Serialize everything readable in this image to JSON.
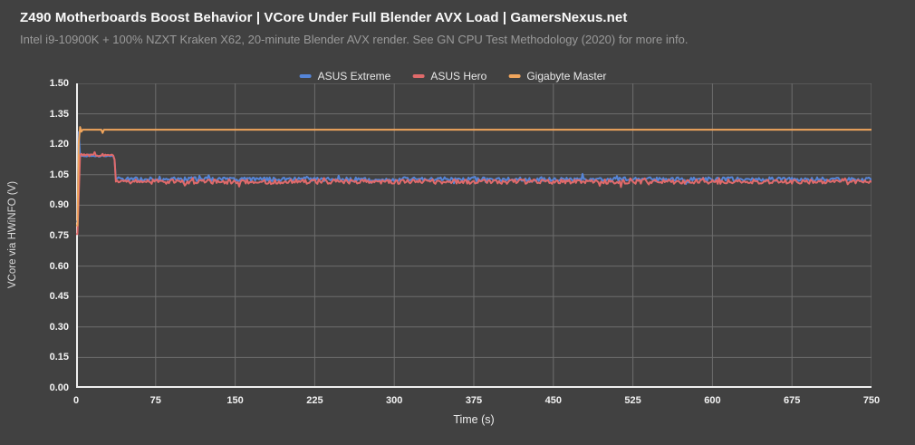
{
  "header": {
    "title": "Z490 Motherboards Boost Behavior | VCore Under Full Blender AVX Load | GamersNexus.net",
    "subtitle": "Intel i9-10900K + 100% NZXT Kraken X62, 20-minute Blender AVX render. See GN CPU Test Methodology (2020) for more info."
  },
  "colors": {
    "background": "#414141",
    "gridline": "#6d6d6d",
    "axis_line": "#efefef",
    "tick_text": "#f2f2f2",
    "series_blue": "#5585d8",
    "series_red": "#e06a6a",
    "series_orange": "#f0a55c"
  },
  "chart_data": {
    "type": "line",
    "title": "Z490 Motherboards Boost Behavior | VCore Under Full Blender AVX Load | GamersNexus.net",
    "subtitle": "Intel i9-10900K + 100% NZXT Kraken X62, 20-minute Blender AVX render. See GN CPU Test Methodology (2020) for more info.",
    "xlabel": "Time (s)",
    "ylabel": "VCore via HWiNFO (V)",
    "xlim": [
      0,
      750
    ],
    "ylim": [
      0.0,
      1.5
    ],
    "xticks": [
      0,
      75,
      150,
      225,
      300,
      375,
      450,
      525,
      600,
      675,
      750
    ],
    "yticks": [
      0.0,
      0.15,
      0.3,
      0.45,
      0.6,
      0.75,
      0.9,
      1.05,
      1.2,
      1.35,
      1.5
    ],
    "ytick_format_decimals": 2,
    "grid": true,
    "legend_position": "top-center",
    "series": [
      {
        "name": "ASUS Extreme",
        "color": "#5585d8",
        "summary": "Starts ~0.82 V, brief spike to ~1.26 V at ~2 s, plateau ~1.14 V until ~36 s, then steady ~1.03 V with small noise to 750 s",
        "keypoints": [
          [
            0,
            0.82
          ],
          [
            1.25,
            0.82
          ],
          [
            2.5,
            1.26
          ],
          [
            3.75,
            1.142
          ],
          [
            36,
            1.142
          ],
          [
            37.5,
            1.028
          ],
          [
            750,
            1.028
          ]
        ],
        "noise": [
          {
            "from": 5,
            "to": 36,
            "amp": 0.003
          },
          {
            "from": 38.75,
            "to": 750,
            "amp": 0.01
          }
        ]
      },
      {
        "name": "ASUS Hero",
        "color": "#e06a6a",
        "summary": "Starts ~0.76 V, rises to plateau ~1.15 V until ~36 s, then steady ~1.02 V with small noise to 750 s",
        "keypoints": [
          [
            0,
            0.758
          ],
          [
            1.25,
            0.758
          ],
          [
            3.75,
            1.147
          ],
          [
            36,
            1.147
          ],
          [
            37.5,
            1.016
          ],
          [
            750,
            1.016
          ]
        ],
        "noise": [
          {
            "from": 5,
            "to": 36,
            "amp": 0.006
          },
          {
            "from": 38.75,
            "to": 750,
            "amp": 0.011
          }
        ]
      },
      {
        "name": "Gigabyte Master",
        "color": "#f0a55c",
        "summary": "Starts ~0.80 V, rises to ~1.27 V by ~4 s and holds flat through 750 s, with one tiny dip (~1.25 V) near 25 s",
        "keypoints": [
          [
            0,
            0.8
          ],
          [
            1.25,
            0.8
          ],
          [
            2.5,
            1.21
          ],
          [
            3.75,
            1.285
          ],
          [
            5,
            1.262
          ],
          [
            6.25,
            1.272
          ],
          [
            24.4,
            1.272
          ],
          [
            24.9,
            1.252
          ],
          [
            25.4,
            1.272
          ],
          [
            750,
            1.272
          ]
        ],
        "noise": []
      }
    ]
  }
}
